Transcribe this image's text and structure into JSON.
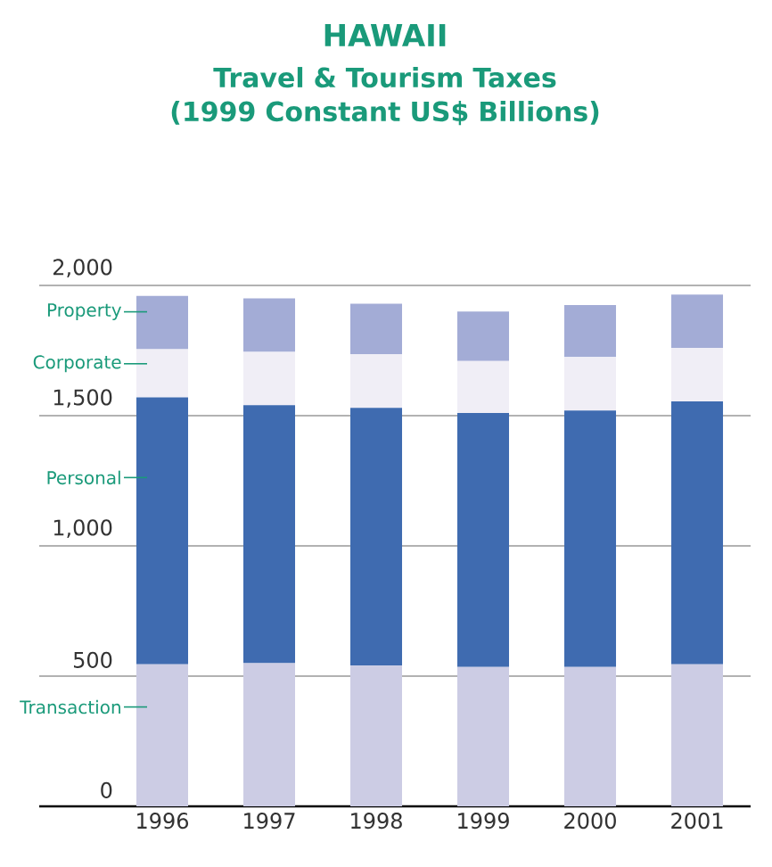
{
  "chart_data": {
    "type": "bar",
    "stacked": true,
    "title": "HAWAII",
    "subtitle": "Travel & Tourism Taxes (1999 Constant US$ Billions)",
    "categories": [
      "1996",
      "1997",
      "1998",
      "1999",
      "2000",
      "2001"
    ],
    "series": [
      {
        "name": "Transaction",
        "color": "#ccccE4",
        "values": [
          545,
          550,
          540,
          535,
          535,
          545
        ]
      },
      {
        "name": "Personal",
        "color": "#3f6bb0",
        "values": [
          1025,
          990,
          990,
          975,
          985,
          1010
        ]
      },
      {
        "name": "Corporate",
        "color": "#f0eef6",
        "values": [
          185,
          205,
          205,
          200,
          205,
          205
        ]
      },
      {
        "name": "Property",
        "color": "#a3acd6",
        "values": [
          205,
          205,
          195,
          190,
          200,
          205
        ]
      }
    ],
    "ylim": [
      0,
      2000
    ],
    "yticks": [
      {
        "value": 0,
        "label": "0"
      },
      {
        "value": 500,
        "label": "500"
      },
      {
        "value": 1000,
        "label": "1,000"
      },
      {
        "value": 1500,
        "label": "1,500"
      },
      {
        "value": 2000,
        "label": "2,000"
      }
    ],
    "grid": "y",
    "legend": "left"
  }
}
